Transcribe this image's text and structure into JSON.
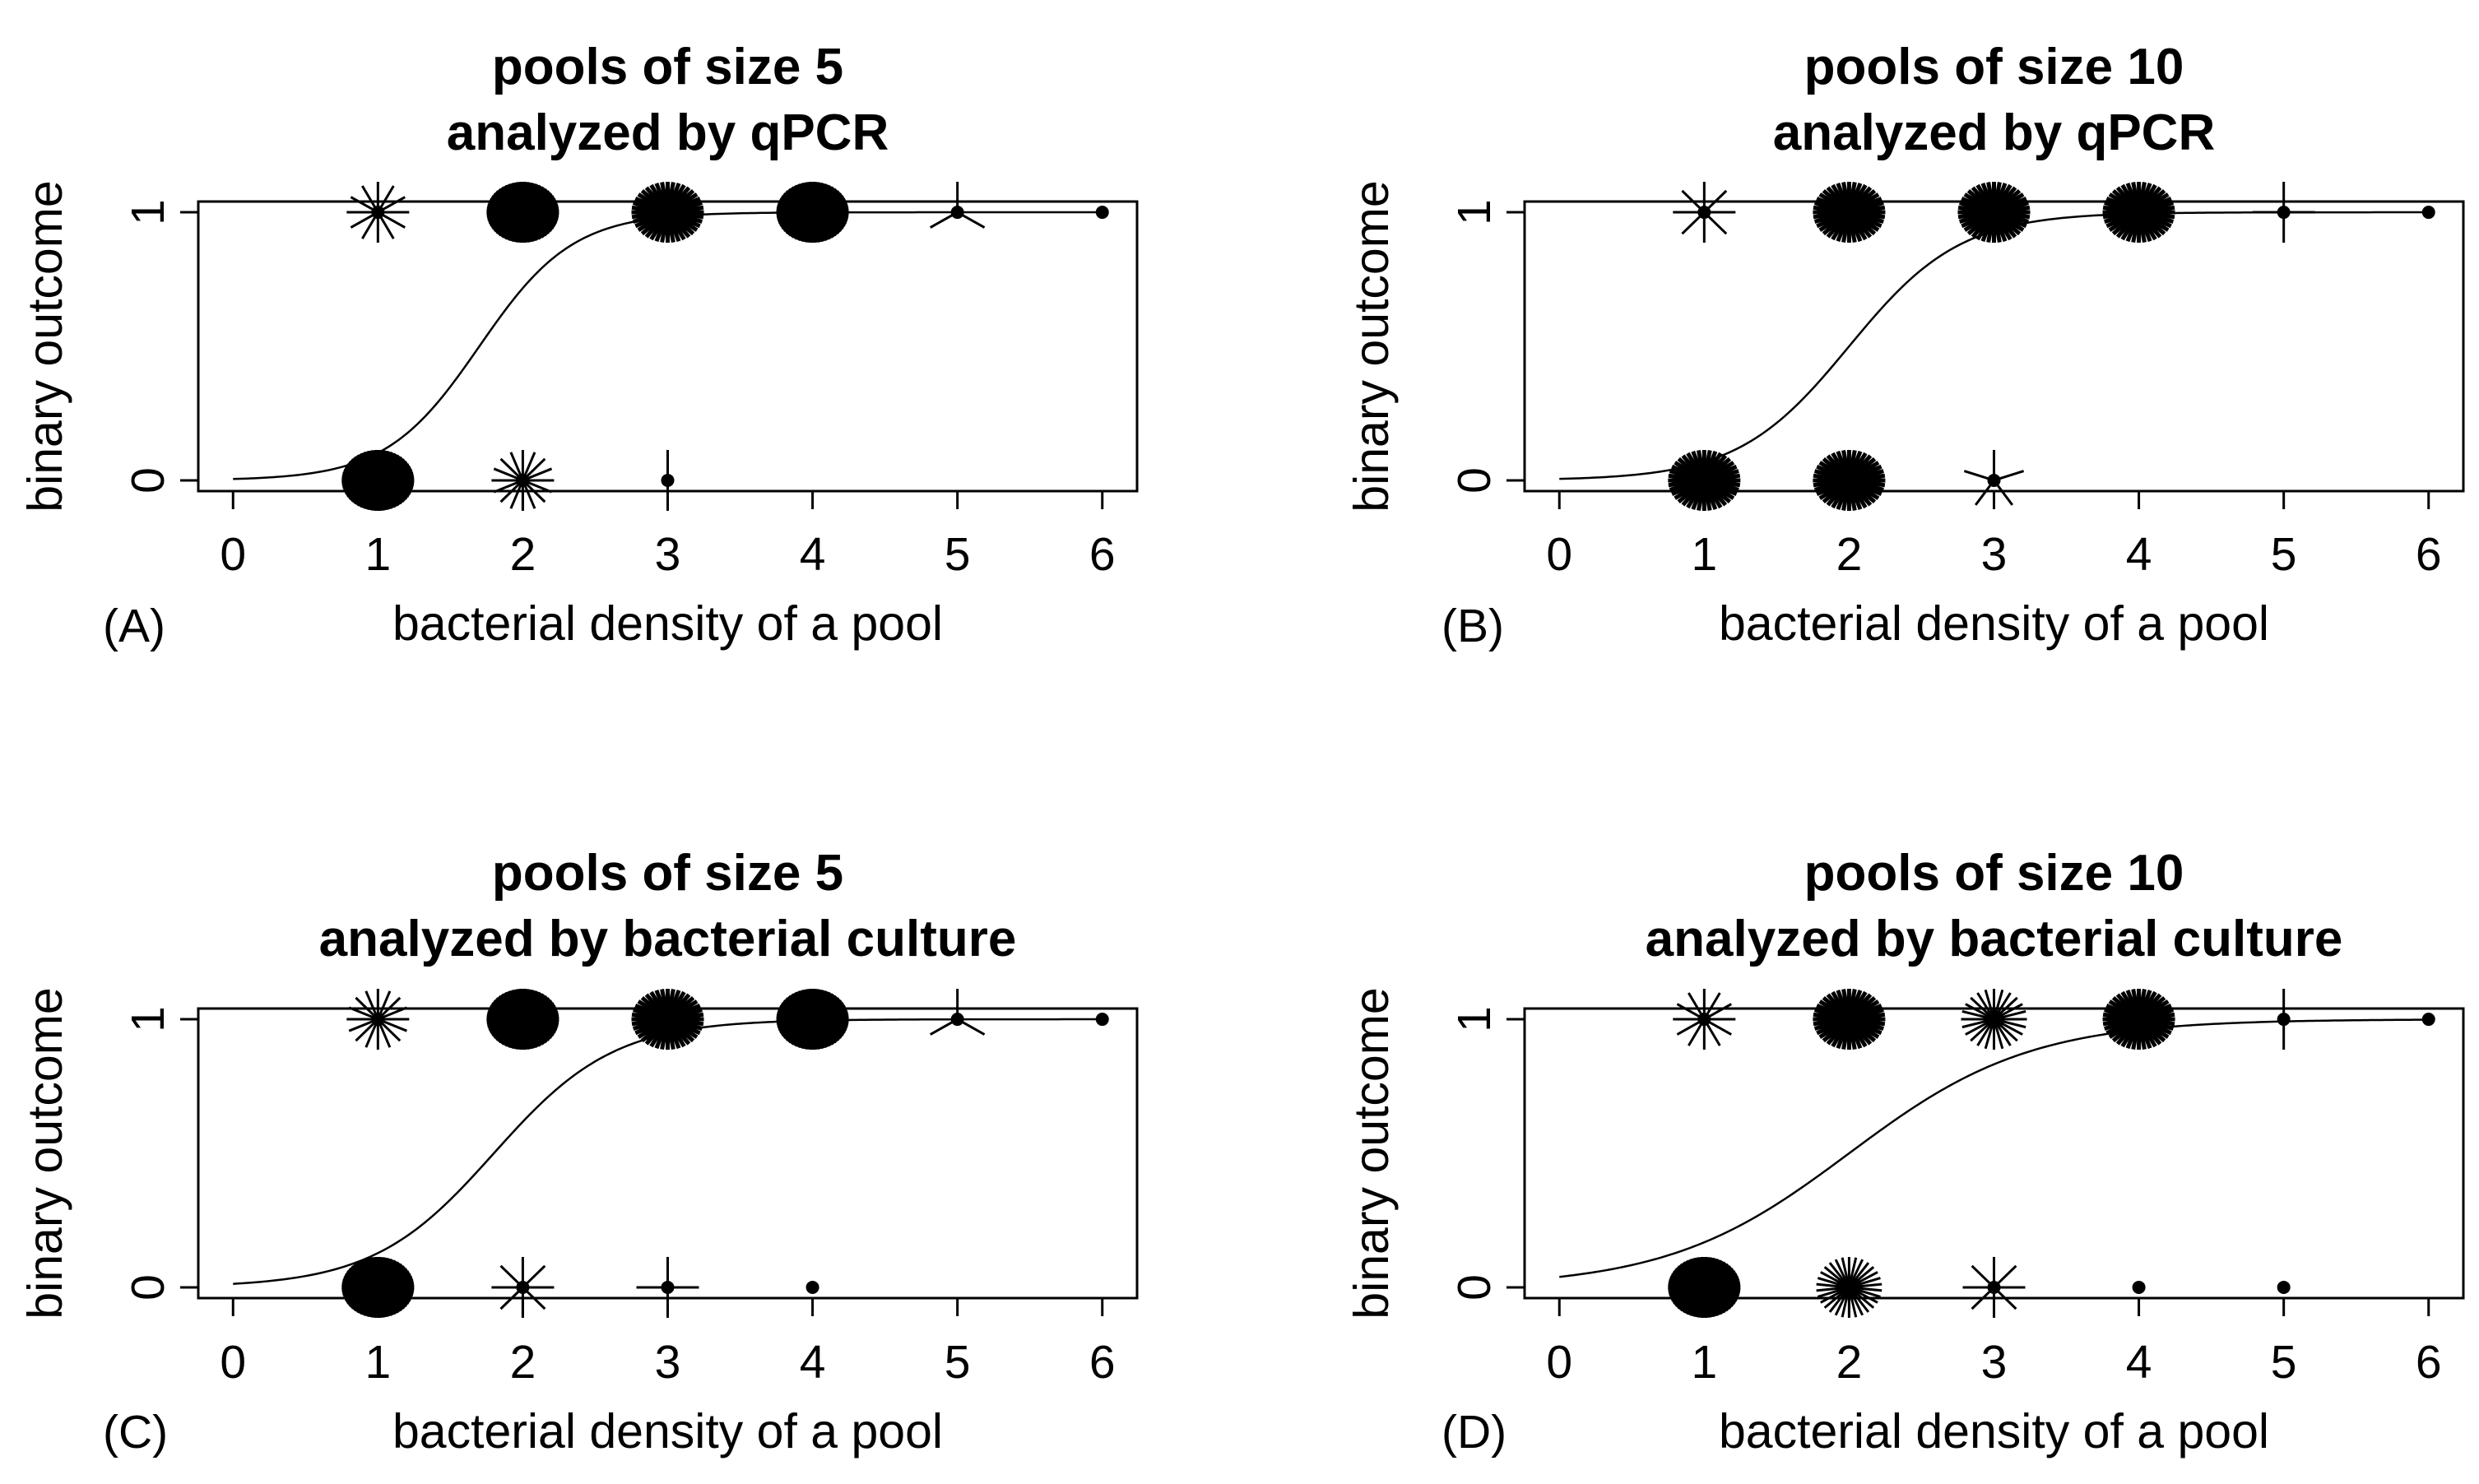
{
  "chart_data": [
    {
      "type": "scatter",
      "panel_label": "(A)",
      "title_lines": [
        "pools of size 5",
        "analyzed by qPCR"
      ],
      "xlabel": "bacterial density of a pool",
      "ylabel": "binary outcome",
      "xlim": [
        0,
        6
      ],
      "ylim": [
        0,
        1
      ],
      "x_ticks": [
        "0",
        "1",
        "2",
        "3",
        "4",
        "5",
        "6"
      ],
      "y_ticks": [
        "0",
        "1"
      ],
      "grid": false,
      "logistic_fit": {
        "midpoint": 1.7,
        "slope": 3.1
      },
      "points": [
        {
          "x": 1,
          "y": 1,
          "count": 12
        },
        {
          "x": 2,
          "y": 1,
          "count": 60
        },
        {
          "x": 3,
          "y": 1,
          "count": 40
        },
        {
          "x": 4,
          "y": 1,
          "count": 60
        },
        {
          "x": 5,
          "y": 1,
          "count": 3
        },
        {
          "x": 6,
          "y": 1,
          "count": 1
        },
        {
          "x": 1,
          "y": 0,
          "count": 60
        },
        {
          "x": 2,
          "y": 0,
          "count": 16
        },
        {
          "x": 3,
          "y": 0,
          "count": 2
        }
      ]
    },
    {
      "type": "scatter",
      "panel_label": "(B)",
      "title_lines": [
        "pools of size 10",
        "analyzed by qPCR"
      ],
      "xlabel": "bacterial density of a pool",
      "ylabel": "binary outcome",
      "xlim": [
        0,
        6
      ],
      "ylim": [
        0,
        1
      ],
      "x_ticks": [
        "0",
        "1",
        "2",
        "3",
        "4",
        "5",
        "6"
      ],
      "y_ticks": [
        "0",
        "1"
      ],
      "grid": false,
      "logistic_fit": {
        "midpoint": 2.0,
        "slope": 2.6
      },
      "points": [
        {
          "x": 1,
          "y": 1,
          "count": 8
        },
        {
          "x": 2,
          "y": 1,
          "count": 40
        },
        {
          "x": 3,
          "y": 1,
          "count": 40
        },
        {
          "x": 4,
          "y": 1,
          "count": 40
        },
        {
          "x": 5,
          "y": 1,
          "count": 4
        },
        {
          "x": 6,
          "y": 1,
          "count": 1
        },
        {
          "x": 1,
          "y": 0,
          "count": 40
        },
        {
          "x": 2,
          "y": 0,
          "count": 40
        },
        {
          "x": 3,
          "y": 0,
          "count": 5
        }
      ]
    },
    {
      "type": "scatter",
      "panel_label": "(C)",
      "title_lines": [
        "pools of size 5",
        "analyzed by bacterial culture"
      ],
      "xlabel": "bacterial density of a pool",
      "ylabel": "binary outcome",
      "xlim": [
        0,
        6
      ],
      "ylim": [
        0,
        1
      ],
      "x_ticks": [
        "0",
        "1",
        "2",
        "3",
        "4",
        "5",
        "6"
      ],
      "y_ticks": [
        "0",
        "1"
      ],
      "grid": false,
      "logistic_fit": {
        "midpoint": 1.8,
        "slope": 2.4
      },
      "points": [
        {
          "x": 1,
          "y": 1,
          "count": 16
        },
        {
          "x": 2,
          "y": 1,
          "count": 60
        },
        {
          "x": 3,
          "y": 1,
          "count": 40
        },
        {
          "x": 4,
          "y": 1,
          "count": 60
        },
        {
          "x": 5,
          "y": 1,
          "count": 3
        },
        {
          "x": 6,
          "y": 1,
          "count": 1
        },
        {
          "x": 1,
          "y": 0,
          "count": 60
        },
        {
          "x": 2,
          "y": 0,
          "count": 8
        },
        {
          "x": 3,
          "y": 0,
          "count": 4
        },
        {
          "x": 4,
          "y": 0,
          "count": 1
        }
      ]
    },
    {
      "type": "scatter",
      "panel_label": "(D)",
      "title_lines": [
        "pools of size 10",
        "analyzed by bacterial culture"
      ],
      "xlabel": "bacterial density of a pool",
      "ylabel": "binary outcome",
      "xlim": [
        0,
        6
      ],
      "ylim": [
        0,
        1
      ],
      "x_ticks": [
        "0",
        "1",
        "2",
        "3",
        "4",
        "5",
        "6"
      ],
      "y_ticks": [
        "0",
        "1"
      ],
      "grid": false,
      "logistic_fit": {
        "midpoint": 2.0,
        "slope": 1.6
      },
      "points": [
        {
          "x": 1,
          "y": 1,
          "count": 12
        },
        {
          "x": 2,
          "y": 1,
          "count": 40
        },
        {
          "x": 3,
          "y": 1,
          "count": 24
        },
        {
          "x": 4,
          "y": 1,
          "count": 40
        },
        {
          "x": 5,
          "y": 1,
          "count": 2
        },
        {
          "x": 6,
          "y": 1,
          "count": 1
        },
        {
          "x": 1,
          "y": 0,
          "count": 60
        },
        {
          "x": 2,
          "y": 0,
          "count": 30
        },
        {
          "x": 3,
          "y": 0,
          "count": 8
        },
        {
          "x": 4,
          "y": 0,
          "count": 1
        },
        {
          "x": 5,
          "y": 0,
          "count": 1
        }
      ]
    }
  ]
}
